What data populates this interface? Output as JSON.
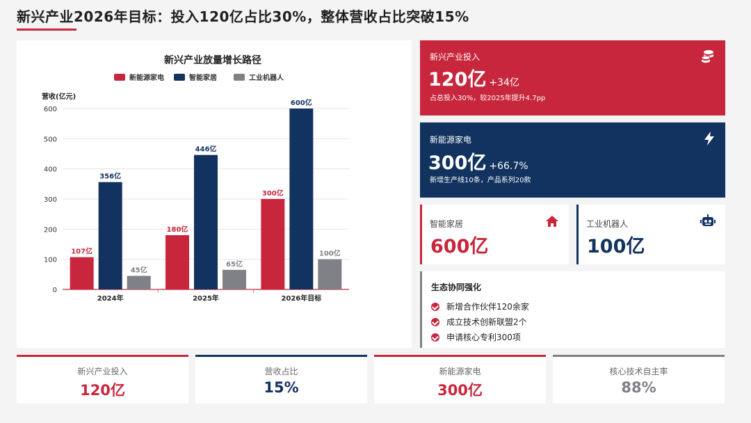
{
  "header": {
    "title": "新兴产业2026年目标：投入120亿占比30%，整体营收占比突破15%"
  },
  "colors": {
    "red": "#c8263c",
    "navy": "#12325f",
    "gray": "#7f8186"
  },
  "chart_data": {
    "type": "bar",
    "title": "新兴产业放量增长路径",
    "ylabel": "营收(亿元)",
    "xlabel": "",
    "ylim": [
      0,
      600
    ],
    "yticks": [
      0,
      100,
      200,
      300,
      400,
      500,
      600
    ],
    "categories": [
      "2024年",
      "2025年",
      "2026年目标"
    ],
    "legend_position": "top",
    "grid": true,
    "series": [
      {
        "name": "新能源家电",
        "color": "#c8263c",
        "values": [
          107,
          180,
          300
        ],
        "labels": [
          "107亿",
          "180亿",
          "300亿"
        ]
      },
      {
        "name": "智能家居",
        "color": "#12325f",
        "values": [
          356,
          446,
          600
        ],
        "labels": [
          "356亿",
          "446亿",
          "600亿"
        ]
      },
      {
        "name": "工业机器人",
        "color": "#7f8186",
        "values": [
          45,
          65,
          100
        ],
        "labels": [
          "45亿",
          "65亿",
          "100亿"
        ]
      }
    ]
  },
  "cards": {
    "invest": {
      "label": "新兴产业投入",
      "value": "120亿",
      "delta": "+34亿",
      "note": "占总投入30%，较2025年提升4.7pp",
      "icon": "coins-icon"
    },
    "energy": {
      "label": "新能源家电",
      "value": "300亿",
      "delta": "+66.7%",
      "note": "新增生产线10条，产品系列20款",
      "icon": "lightning-icon"
    },
    "smarthome": {
      "label": "智能家居",
      "value": "600亿",
      "icon": "home-icon"
    },
    "robot": {
      "label": "工业机器人",
      "value": "100亿",
      "icon": "robot-icon"
    }
  },
  "ecosystem": {
    "title": "生态协同强化",
    "items": [
      "新增合作伙伴120余家",
      "成立技术创新联盟2个",
      "申请核心专利300项"
    ]
  },
  "stats": [
    {
      "label": "新兴产业投入",
      "value": "120亿",
      "color": "#c8263c"
    },
    {
      "label": "营收占比",
      "value": "15%",
      "color": "#12325f"
    },
    {
      "label": "新能源家电",
      "value": "300亿",
      "color": "#c8263c"
    },
    {
      "label": "核心技术自主率",
      "value": "88%",
      "color": "#7f8186"
    }
  ]
}
